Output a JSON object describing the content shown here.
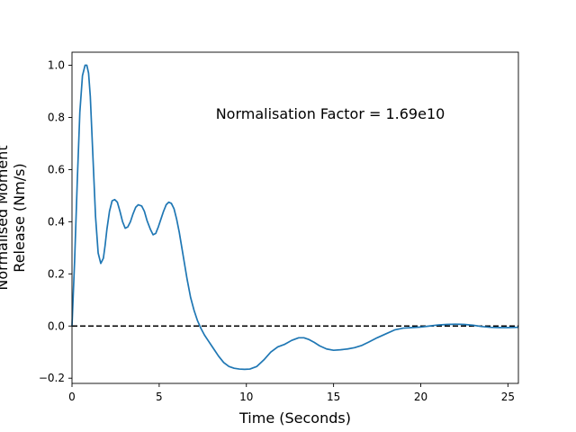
{
  "chart_data": {
    "type": "line",
    "title": "",
    "xlabel": "Time (Seconds)",
    "ylabel_line1": "Normalised Moment",
    "ylabel_line2": "Release (Nm/s)",
    "annotation": "Normalisation Factor = 1.69e10",
    "xlim": [
      0,
      25.6
    ],
    "ylim": [
      -0.22,
      1.05
    ],
    "xticks": [
      0,
      5,
      10,
      15,
      20,
      25
    ],
    "xtick_labels": [
      "0",
      "5",
      "10",
      "15",
      "20",
      "25"
    ],
    "yticks": [
      -0.2,
      0.0,
      0.2,
      0.4,
      0.6,
      0.8,
      1.0
    ],
    "ytick_labels": [
      "−0.2",
      "0.0",
      "0.2",
      "0.4",
      "0.6",
      "0.8",
      "1.0"
    ],
    "grid": false,
    "reference_line": {
      "y": 0,
      "style": "dashed",
      "color": "#000000"
    },
    "series": [
      {
        "color": "#1f77b4",
        "x": [
          0,
          0.15,
          0.3,
          0.45,
          0.6,
          0.75,
          0.85,
          0.95,
          1.05,
          1.2,
          1.35,
          1.5,
          1.65,
          1.8,
          1.9,
          2.0,
          2.15,
          2.3,
          2.45,
          2.6,
          2.75,
          2.9,
          3.05,
          3.2,
          3.35,
          3.5,
          3.65,
          3.8,
          4.0,
          4.15,
          4.3,
          4.5,
          4.65,
          4.8,
          4.95,
          5.1,
          5.25,
          5.4,
          5.55,
          5.7,
          5.85,
          6.0,
          6.15,
          6.3,
          6.45,
          6.6,
          6.8,
          7.0,
          7.2,
          7.4,
          7.6,
          7.8,
          8.0,
          8.2,
          8.4,
          8.7,
          9.0,
          9.3,
          9.6,
          9.9,
          10.2,
          10.6,
          11.0,
          11.4,
          11.8,
          12.2,
          12.6,
          13.0,
          13.3,
          13.6,
          13.9,
          14.2,
          14.6,
          15.0,
          15.4,
          15.8,
          16.2,
          16.6,
          17.0,
          17.5,
          18.0,
          18.5,
          19.0,
          19.5,
          20.0,
          20.5,
          21.0,
          21.5,
          22.0,
          22.5,
          23.0,
          23.5,
          24.0,
          24.5,
          25.0,
          25.6
        ],
        "y": [
          0.0,
          0.25,
          0.55,
          0.82,
          0.96,
          1.0,
          1.0,
          0.97,
          0.88,
          0.65,
          0.42,
          0.28,
          0.24,
          0.26,
          0.31,
          0.37,
          0.44,
          0.48,
          0.485,
          0.475,
          0.44,
          0.4,
          0.375,
          0.38,
          0.4,
          0.43,
          0.455,
          0.465,
          0.46,
          0.44,
          0.405,
          0.37,
          0.35,
          0.355,
          0.38,
          0.41,
          0.44,
          0.465,
          0.475,
          0.47,
          0.45,
          0.41,
          0.36,
          0.3,
          0.24,
          0.18,
          0.11,
          0.06,
          0.02,
          -0.01,
          -0.035,
          -0.055,
          -0.075,
          -0.095,
          -0.115,
          -0.14,
          -0.155,
          -0.162,
          -0.165,
          -0.166,
          -0.165,
          -0.155,
          -0.13,
          -0.1,
          -0.08,
          -0.07,
          -0.055,
          -0.045,
          -0.045,
          -0.052,
          -0.063,
          -0.076,
          -0.088,
          -0.093,
          -0.091,
          -0.088,
          -0.083,
          -0.075,
          -0.062,
          -0.045,
          -0.03,
          -0.015,
          -0.008,
          -0.006,
          -0.004,
          0.0,
          0.004,
          0.006,
          0.007,
          0.006,
          0.003,
          -0.002,
          -0.005,
          -0.006,
          -0.006,
          -0.005
        ]
      }
    ]
  }
}
